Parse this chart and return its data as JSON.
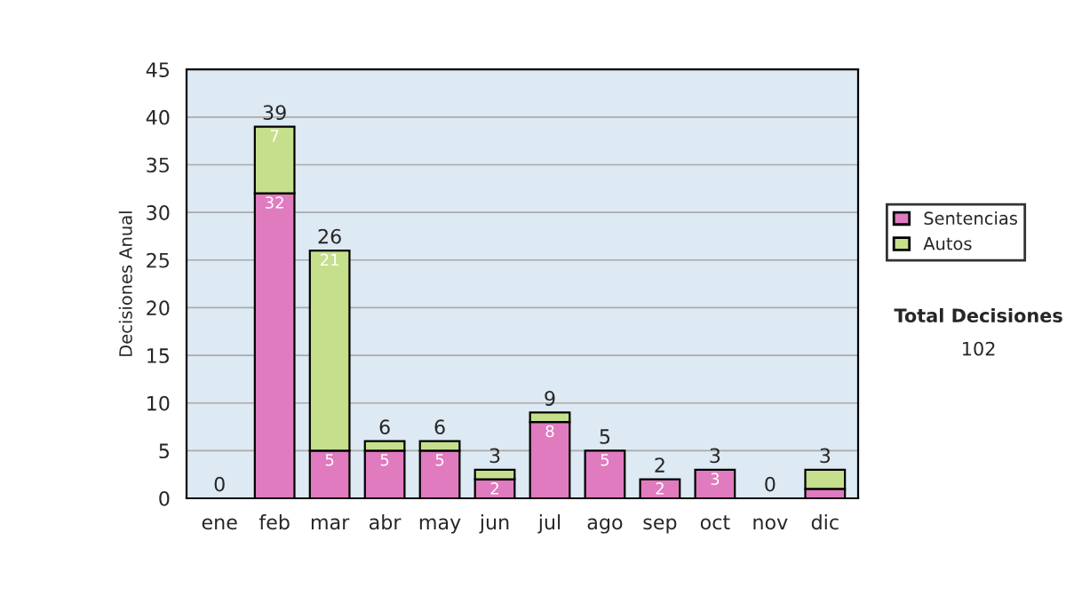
{
  "chart_data": {
    "type": "bar",
    "stacked": true,
    "ylabel": "Decisiones Anual",
    "categories": [
      "ene",
      "feb",
      "mar",
      "abr",
      "may",
      "jun",
      "jul",
      "ago",
      "sep",
      "oct",
      "nov",
      "dic"
    ],
    "series": [
      {
        "name": "Sentencias",
        "color": "#e07bbf",
        "values": [
          0,
          32,
          5,
          5,
          5,
          2,
          8,
          5,
          2,
          3,
          0,
          1
        ],
        "value_labels": [
          null,
          "32",
          "5",
          "5",
          "5",
          "2",
          "8",
          "5",
          "2",
          "3",
          null,
          null
        ]
      },
      {
        "name": "Autos",
        "color": "#c6df8c",
        "values": [
          0,
          7,
          21,
          1,
          1,
          1,
          1,
          0,
          0,
          0,
          0,
          2
        ],
        "value_labels": [
          null,
          "7",
          "21",
          null,
          null,
          null,
          null,
          null,
          null,
          null,
          null,
          null
        ]
      }
    ],
    "totals": [
      "0",
      "39",
      "26",
      "6",
      "6",
      "3",
      "9",
      "5",
      "2",
      "3",
      "0",
      "3"
    ],
    "ylim": [
      0,
      45
    ],
    "yticks": [
      0,
      5,
      10,
      15,
      20,
      25,
      30,
      35,
      40,
      45
    ],
    "grid": "y",
    "legend": "right",
    "annotations": [
      "Total Decisiones",
      "102"
    ]
  }
}
